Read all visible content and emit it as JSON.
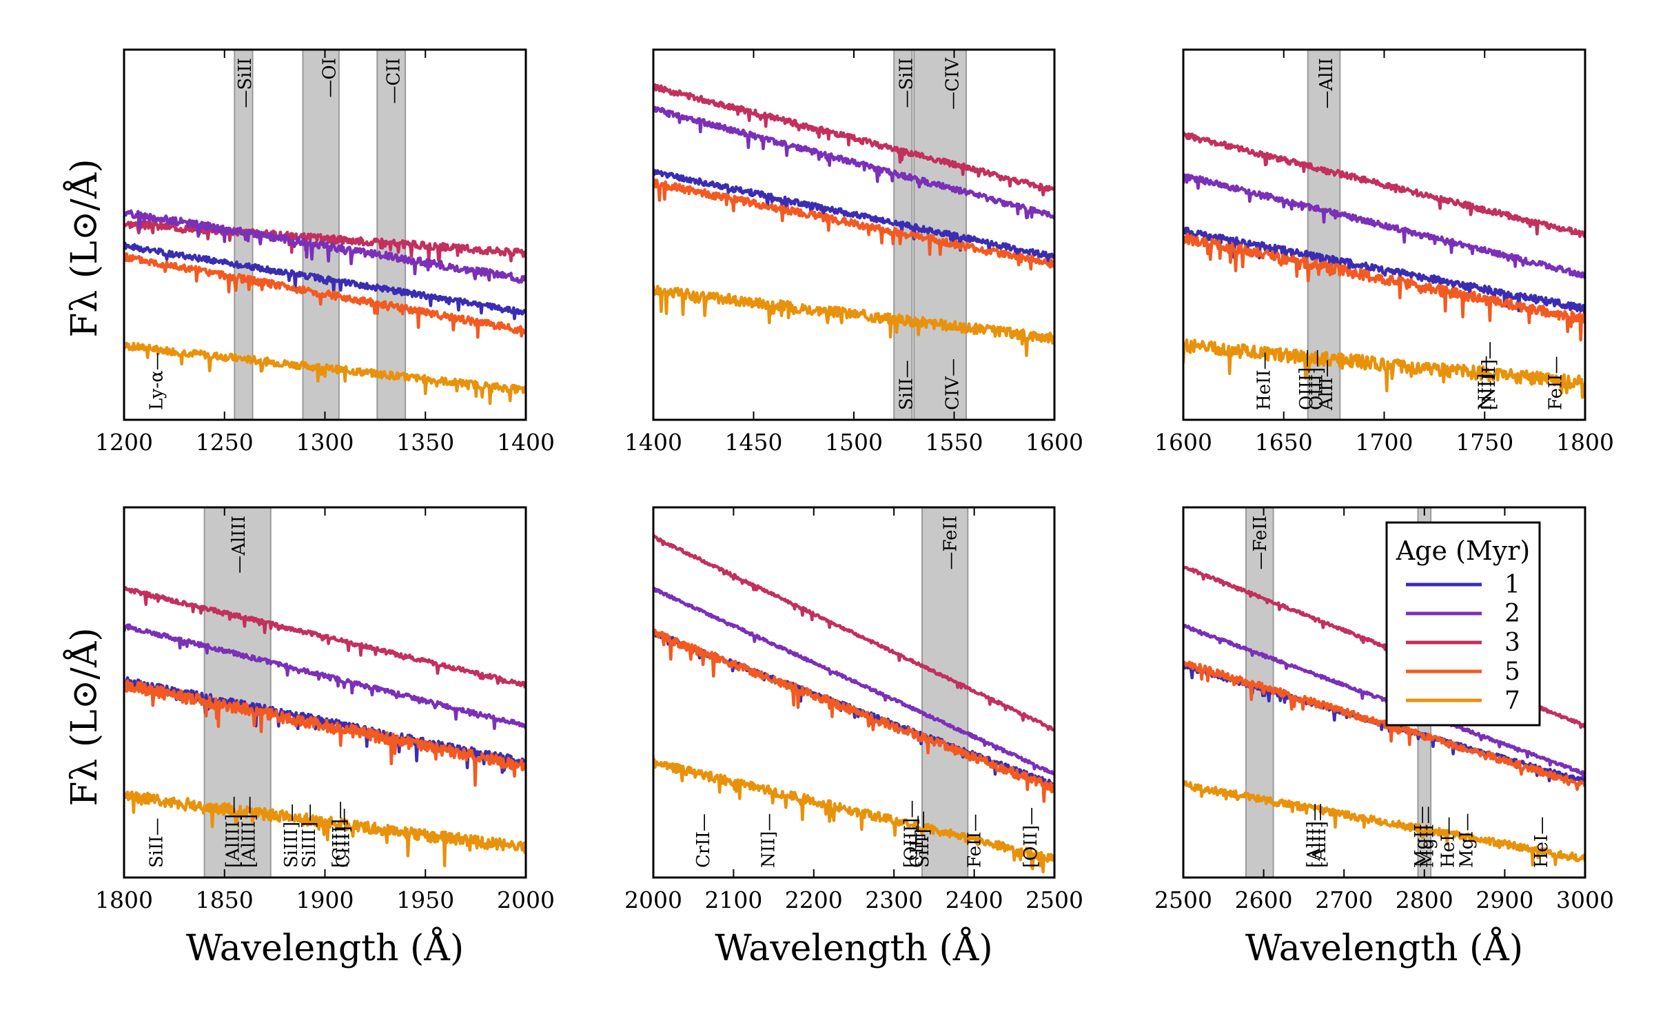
{
  "figure": {
    "ylabel": "Fλ (L⊙/Å)",
    "xlabel": "Wavelength (Å)"
  },
  "legend": {
    "title": "Age (Myr)",
    "entries": [
      {
        "label": "1",
        "color": "#3b2db3"
      },
      {
        "label": "2",
        "color": "#7b30b8"
      },
      {
        "label": "3",
        "color": "#c2305e"
      },
      {
        "label": "5",
        "color": "#f25a22"
      },
      {
        "label": "7",
        "color": "#e8920c"
      }
    ]
  },
  "chart_data": [
    {
      "type": "line",
      "xlim": [
        1200,
        1400
      ],
      "xticks": [
        1200,
        1250,
        1300,
        1350,
        1400
      ],
      "xlabel": "",
      "ylabel": "Fλ (L⊙/Å)",
      "bands": [
        [
          1255,
          1264
        ],
        [
          1289,
          1307
        ],
        [
          1326,
          1340
        ]
      ],
      "top_labels": [
        {
          "x": 1260,
          "text": "SiII"
        },
        {
          "x": 1302,
          "text": "OI"
        },
        {
          "x": 1334,
          "text": "CII"
        }
      ],
      "bottom_labels": [
        {
          "x": 1216,
          "text": "Ly-α"
        }
      ],
      "series": [
        {
          "name": "3",
          "start": 0.53,
          "end": 0.45,
          "noise": 0.01,
          "seed": 3
        },
        {
          "name": "2",
          "start": 0.56,
          "end": 0.38,
          "noise": 0.01,
          "seed": 2
        },
        {
          "name": "1",
          "start": 0.47,
          "end": 0.29,
          "noise": 0.008,
          "seed": 1
        },
        {
          "name": "5",
          "start": 0.44,
          "end": 0.24,
          "noise": 0.01,
          "seed": 5
        },
        {
          "name": "7",
          "start": 0.2,
          "end": 0.08,
          "noise": 0.01,
          "seed": 7
        }
      ]
    },
    {
      "type": "line",
      "xlim": [
        1400,
        1600
      ],
      "xticks": [
        1400,
        1450,
        1500,
        1550,
        1600
      ],
      "xlabel": "",
      "ylabel": "",
      "bands": [
        [
          1520,
          1529
        ],
        [
          1530,
          1556
        ]
      ],
      "top_labels": [
        {
          "x": 1526,
          "text": "SiII"
        },
        {
          "x": 1549,
          "text": "CIV"
        }
      ],
      "bottom_labels": [
        {
          "x": 1526,
          "text": "SiII"
        },
        {
          "x": 1549,
          "text": "CIV"
        }
      ],
      "series": [
        {
          "name": "3",
          "start": 0.9,
          "end": 0.62,
          "noise": 0.008,
          "seed": 13
        },
        {
          "name": "2",
          "start": 0.84,
          "end": 0.55,
          "noise": 0.008,
          "seed": 12
        },
        {
          "name": "1",
          "start": 0.67,
          "end": 0.44,
          "noise": 0.008,
          "seed": 11
        },
        {
          "name": "5",
          "start": 0.64,
          "end": 0.42,
          "noise": 0.01,
          "seed": 15
        },
        {
          "name": "7",
          "start": 0.35,
          "end": 0.22,
          "noise": 0.014,
          "seed": 17
        }
      ]
    },
    {
      "type": "line",
      "xlim": [
        1600,
        1800
      ],
      "xticks": [
        1600,
        1650,
        1700,
        1750,
        1800
      ],
      "xlabel": "",
      "ylabel": "",
      "bands": [
        [
          1662,
          1678
        ]
      ],
      "top_labels": [
        {
          "x": 1671,
          "text": "AlII"
        }
      ],
      "bottom_labels": [
        {
          "x": 1640,
          "text": "HeII"
        },
        {
          "x": 1661,
          "text": "OIII]"
        },
        {
          "x": 1666,
          "text": "OIII]"
        },
        {
          "x": 1671,
          "text": "AlII"
        },
        {
          "x": 1750,
          "text": "NII]"
        },
        {
          "x": 1752,
          "text": "[NIII]"
        },
        {
          "x": 1785,
          "text": "FeII"
        }
      ],
      "series": [
        {
          "name": "3",
          "start": 0.77,
          "end": 0.5,
          "noise": 0.008,
          "seed": 23
        },
        {
          "name": "2",
          "start": 0.66,
          "end": 0.39,
          "noise": 0.008,
          "seed": 22
        },
        {
          "name": "1",
          "start": 0.51,
          "end": 0.3,
          "noise": 0.01,
          "seed": 21
        },
        {
          "name": "5",
          "start": 0.49,
          "end": 0.27,
          "noise": 0.014,
          "seed": 25
        },
        {
          "name": "7",
          "start": 0.2,
          "end": 0.1,
          "noise": 0.018,
          "seed": 27
        }
      ]
    },
    {
      "type": "line",
      "xlim": [
        1800,
        2000
      ],
      "xticks": [
        1800,
        1850,
        1900,
        1950,
        2000
      ],
      "xlabel": "Wavelength (Å)",
      "ylabel": "Fλ (L⊙/Å)",
      "bands": [
        [
          1840,
          1873
        ]
      ],
      "top_labels": [
        {
          "x": 1857,
          "text": "AlIII"
        }
      ],
      "bottom_labels": [
        {
          "x": 1816,
          "text": "SiII"
        },
        {
          "x": 1854,
          "text": "[AlIII]"
        },
        {
          "x": 1862,
          "text": "[AlIII]"
        },
        {
          "x": 1883,
          "text": "SiIII]"
        },
        {
          "x": 1892,
          "text": "SiIII]"
        },
        {
          "x": 1907,
          "text": "[CIII]"
        },
        {
          "x": 1909,
          "text": "CIII]"
        }
      ],
      "series": [
        {
          "name": "3",
          "start": 0.78,
          "end": 0.52,
          "noise": 0.006,
          "seed": 33
        },
        {
          "name": "2",
          "start": 0.68,
          "end": 0.41,
          "noise": 0.006,
          "seed": 32
        },
        {
          "name": "1",
          "start": 0.53,
          "end": 0.31,
          "noise": 0.012,
          "seed": 31
        },
        {
          "name": "5",
          "start": 0.52,
          "end": 0.3,
          "noise": 0.016,
          "seed": 35
        },
        {
          "name": "7",
          "start": 0.22,
          "end": 0.08,
          "noise": 0.016,
          "seed": 37
        }
      ]
    },
    {
      "type": "line",
      "xlim": [
        2000,
        2500
      ],
      "xticks": [
        2000,
        2100,
        2200,
        2300,
        2400,
        2500
      ],
      "xlabel": "Wavelength (Å)",
      "ylabel": "",
      "bands": [
        [
          2335,
          2392
        ]
      ],
      "top_labels": [
        {
          "x": 2370,
          "text": "FeII"
        }
      ],
      "bottom_labels": [
        {
          "x": 2062,
          "text": "CrII"
        },
        {
          "x": 2143,
          "text": "NII]"
        },
        {
          "x": 2321,
          "text": "[OIII]"
        },
        {
          "x": 2328,
          "text": "CII]"
        },
        {
          "x": 2335,
          "text": "SiII]"
        },
        {
          "x": 2400,
          "text": "FeII"
        },
        {
          "x": 2470,
          "text": "[OII]"
        }
      ],
      "series": [
        {
          "name": "3",
          "start": 0.92,
          "end": 0.4,
          "noise": 0.004,
          "seed": 43
        },
        {
          "name": "2",
          "start": 0.78,
          "end": 0.28,
          "noise": 0.004,
          "seed": 42
        },
        {
          "name": "1",
          "start": 0.66,
          "end": 0.25,
          "noise": 0.008,
          "seed": 41
        },
        {
          "name": "5",
          "start": 0.66,
          "end": 0.24,
          "noise": 0.012,
          "seed": 45
        },
        {
          "name": "7",
          "start": 0.31,
          "end": 0.05,
          "noise": 0.012,
          "seed": 47
        }
      ]
    },
    {
      "type": "line",
      "xlim": [
        2500,
        3000
      ],
      "xticks": [
        2500,
        2600,
        2700,
        2800,
        2900,
        3000
      ],
      "xlabel": "Wavelength (Å)",
      "ylabel": "",
      "bands": [
        [
          2578,
          2612
        ],
        [
          2792,
          2808
        ]
      ],
      "top_labels": [
        {
          "x": 2595,
          "text": "FeII"
        }
      ],
      "bottom_labels": [
        {
          "x": 2662,
          "text": "[AlII]"
        },
        {
          "x": 2669,
          "text": "[AlII]"
        },
        {
          "x": 2796,
          "text": "MgII"
        },
        {
          "x": 2803,
          "text": "MgII"
        },
        {
          "x": 2829,
          "text": "HeI"
        },
        {
          "x": 2852,
          "text": "MgI"
        },
        {
          "x": 2945,
          "text": "HeI"
        }
      ],
      "series": [
        {
          "name": "3",
          "start": 0.84,
          "end": 0.41,
          "noise": 0.004,
          "seed": 53
        },
        {
          "name": "2",
          "start": 0.68,
          "end": 0.28,
          "noise": 0.004,
          "seed": 52
        },
        {
          "name": "1",
          "start": 0.57,
          "end": 0.26,
          "noise": 0.006,
          "seed": 51
        },
        {
          "name": "5",
          "start": 0.58,
          "end": 0.25,
          "noise": 0.01,
          "seed": 55
        },
        {
          "name": "7",
          "start": 0.25,
          "end": 0.05,
          "noise": 0.01,
          "seed": 57
        }
      ]
    }
  ]
}
